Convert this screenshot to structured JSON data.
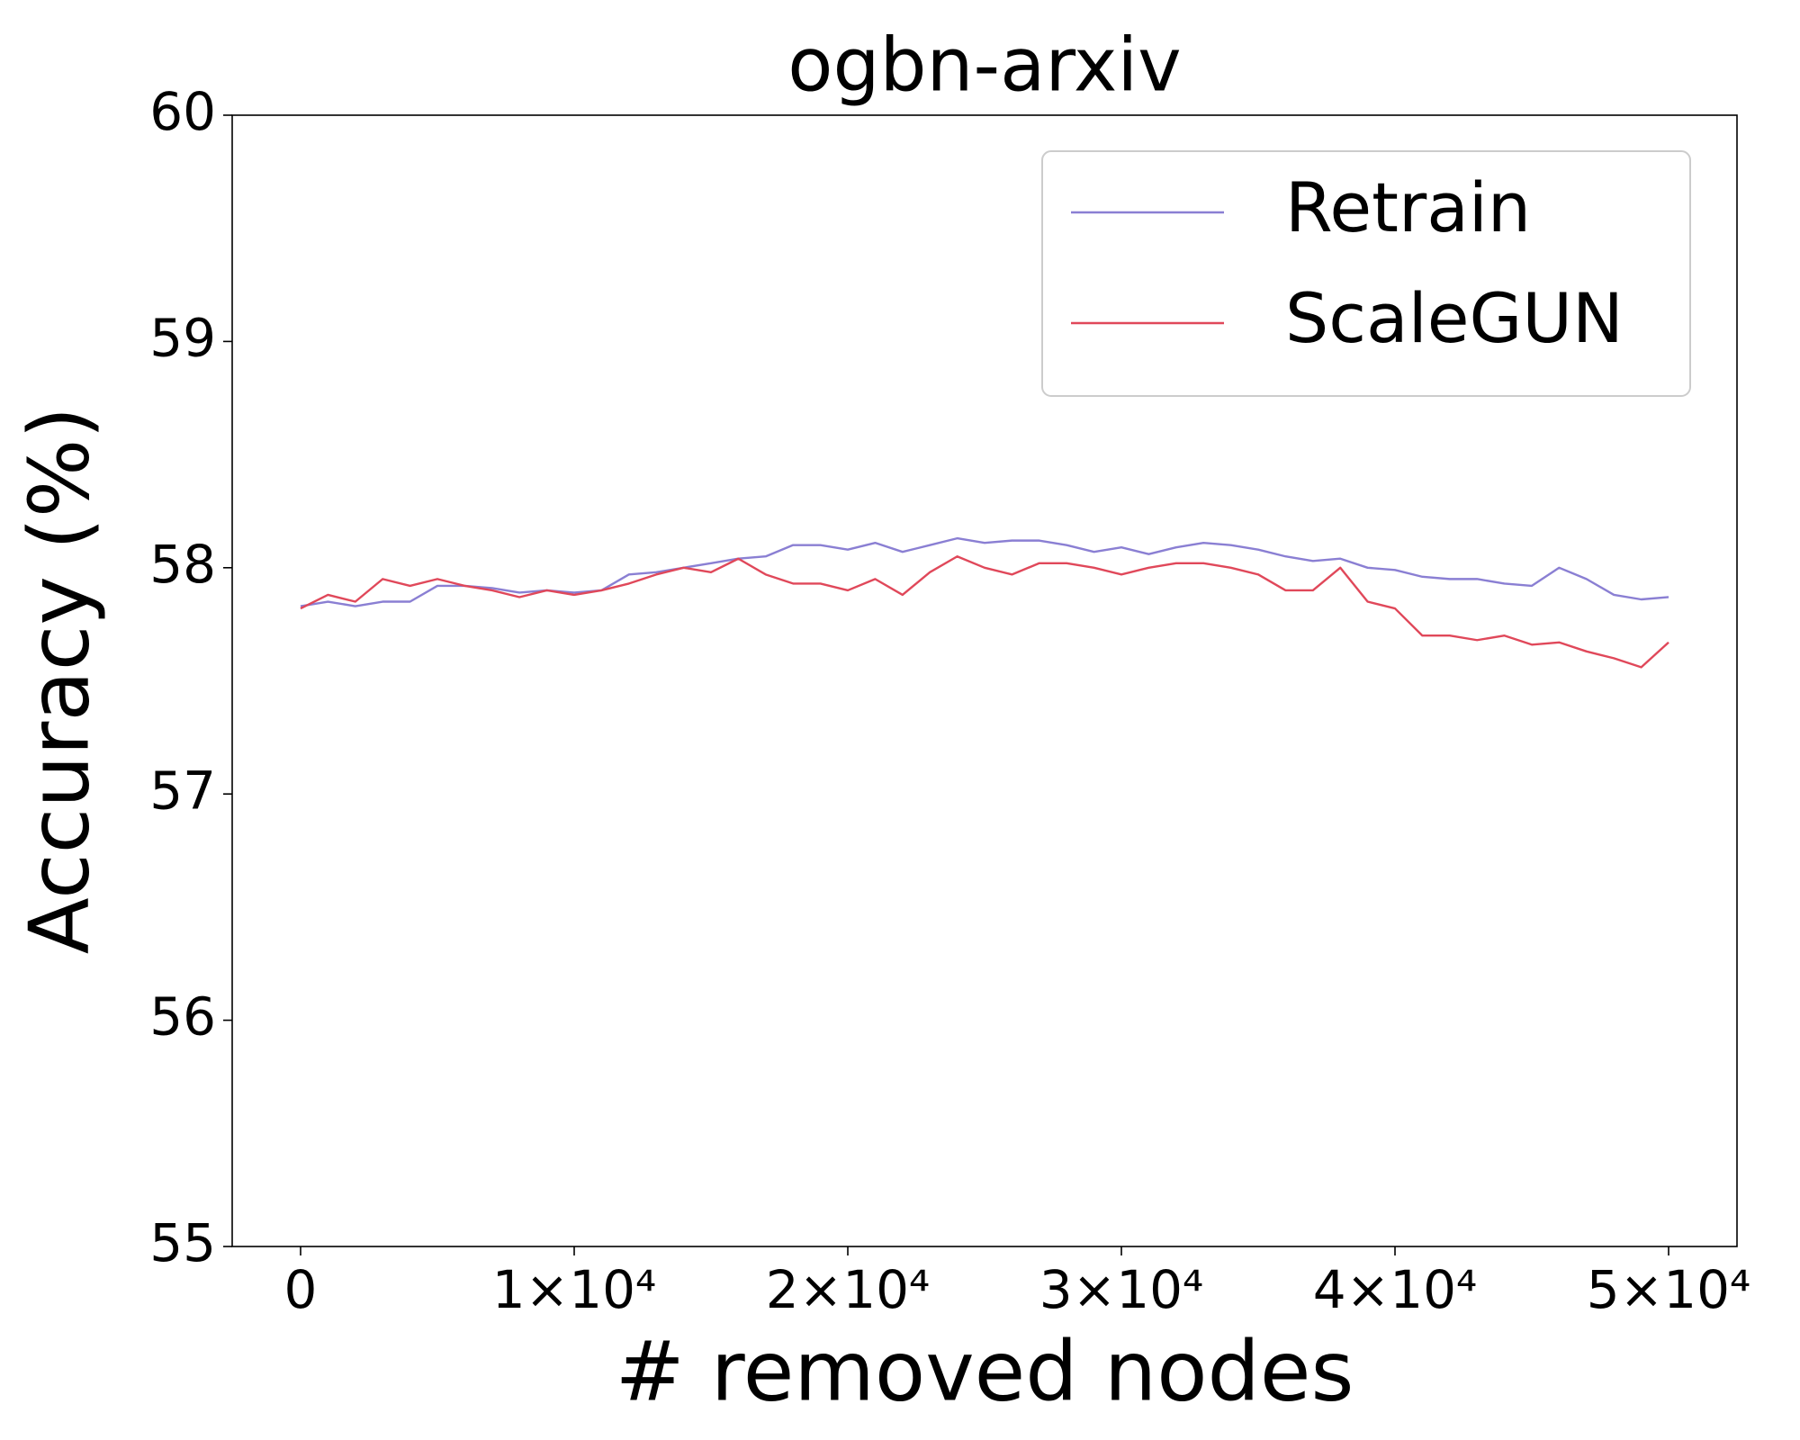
{
  "chart_data": {
    "type": "line",
    "title": "ogbn-arxiv",
    "x_label": "# removed nodes",
    "y_label": "Accuracy (%)",
    "x": [
      0,
      1000,
      2000,
      3000,
      4000,
      5000,
      6000,
      7000,
      8000,
      9000,
      10000,
      11000,
      12000,
      13000,
      14000,
      15000,
      16000,
      17000,
      18000,
      19000,
      20000,
      21000,
      22000,
      23000,
      24000,
      25000,
      26000,
      27000,
      28000,
      29000,
      30000,
      31000,
      32000,
      33000,
      34000,
      35000,
      36000,
      37000,
      38000,
      39000,
      40000,
      41000,
      42000,
      43000,
      44000,
      45000,
      46000,
      47000,
      48000,
      49000,
      50000
    ],
    "series": [
      {
        "name": "Retrain",
        "color": "#8a7fd3",
        "values": [
          57.83,
          57.85,
          57.83,
          57.85,
          57.85,
          57.92,
          57.92,
          57.91,
          57.89,
          57.9,
          57.89,
          57.9,
          57.97,
          57.98,
          58.0,
          58.02,
          58.04,
          58.05,
          58.1,
          58.1,
          58.08,
          58.11,
          58.07,
          58.1,
          58.13,
          58.11,
          58.12,
          58.12,
          58.1,
          58.07,
          58.09,
          58.06,
          58.09,
          58.11,
          58.1,
          58.08,
          58.05,
          58.03,
          58.04,
          58.0,
          57.99,
          57.96,
          57.95,
          57.95,
          57.93,
          57.92,
          58.0,
          57.95,
          57.88,
          57.86,
          57.87
        ]
      },
      {
        "name": "ScaleGUN",
        "color": "#e0485a",
        "values": [
          57.82,
          57.88,
          57.85,
          57.95,
          57.92,
          57.95,
          57.92,
          57.9,
          57.87,
          57.9,
          57.88,
          57.9,
          57.93,
          57.97,
          58.0,
          57.98,
          58.04,
          57.97,
          57.93,
          57.93,
          57.9,
          57.95,
          57.88,
          57.98,
          58.05,
          58.0,
          57.97,
          58.02,
          58.02,
          58.0,
          57.97,
          58.0,
          58.02,
          58.02,
          58.0,
          57.97,
          57.9,
          57.9,
          58.0,
          57.85,
          57.82,
          57.7,
          57.7,
          57.68,
          57.7,
          57.66,
          57.67,
          57.63,
          57.6,
          57.56,
          57.67
        ]
      }
    ],
    "xlim": [
      -2500,
      52500
    ],
    "xticks": [
      0,
      {
        "value": 10000,
        "label": "1×10⁴"
      },
      {
        "value": 20000,
        "label": "2×10⁴"
      },
      {
        "value": 30000,
        "label": "3×10⁴"
      },
      {
        "value": 40000,
        "label": "4×10⁴"
      },
      {
        "value": 50000,
        "label": "5×10⁴"
      }
    ],
    "ylim": [
      55,
      60
    ],
    "yticks": [
      55,
      56,
      57,
      58,
      59,
      60
    ],
    "grid": false,
    "legend": "upper right"
  }
}
